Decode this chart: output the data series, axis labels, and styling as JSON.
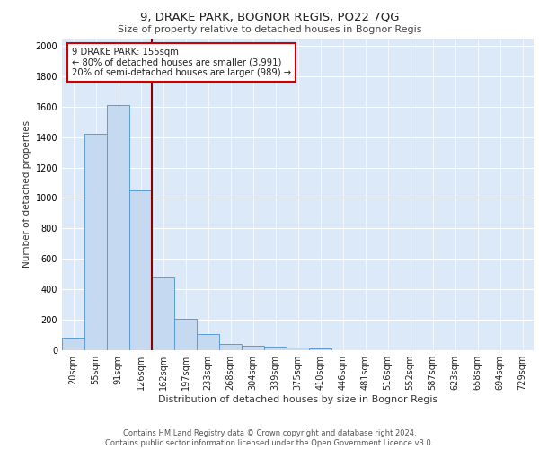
{
  "title": "9, DRAKE PARK, BOGNOR REGIS, PO22 7QG",
  "subtitle": "Size of property relative to detached houses in Bognor Regis",
  "xlabel": "Distribution of detached houses by size in Bognor Regis",
  "ylabel": "Number of detached properties",
  "footer_line1": "Contains HM Land Registry data © Crown copyright and database right 2024.",
  "footer_line2": "Contains public sector information licensed under the Open Government Licence v3.0.",
  "bar_labels": [
    "20sqm",
    "55sqm",
    "91sqm",
    "126sqm",
    "162sqm",
    "197sqm",
    "233sqm",
    "268sqm",
    "304sqm",
    "339sqm",
    "375sqm",
    "410sqm",
    "446sqm",
    "481sqm",
    "516sqm",
    "552sqm",
    "587sqm",
    "623sqm",
    "658sqm",
    "694sqm",
    "729sqm"
  ],
  "bar_values": [
    80,
    1420,
    1610,
    1050,
    480,
    205,
    105,
    42,
    30,
    22,
    18,
    10,
    0,
    0,
    0,
    0,
    0,
    0,
    0,
    0,
    0
  ],
  "bar_color": "#c5d9f0",
  "bar_edge_color": "#5b9bd5",
  "background_color": "#dce9f8",
  "grid_color": "#ffffff",
  "red_line_x": 3.5,
  "red_line_color": "#8b0000",
  "annotation_text": "9 DRAKE PARK: 155sqm\n← 80% of detached houses are smaller (3,991)\n20% of semi-detached houses are larger (989) →",
  "annotation_box_color": "#ffffff",
  "annotation_box_edge": "#cc0000",
  "ylim": [
    0,
    2050
  ],
  "yticks": [
    0,
    200,
    400,
    600,
    800,
    1000,
    1200,
    1400,
    1600,
    1800,
    2000
  ],
  "title_fontsize": 9.5,
  "subtitle_fontsize": 8,
  "tick_fontsize": 7,
  "ylabel_fontsize": 7.5,
  "xlabel_fontsize": 8
}
